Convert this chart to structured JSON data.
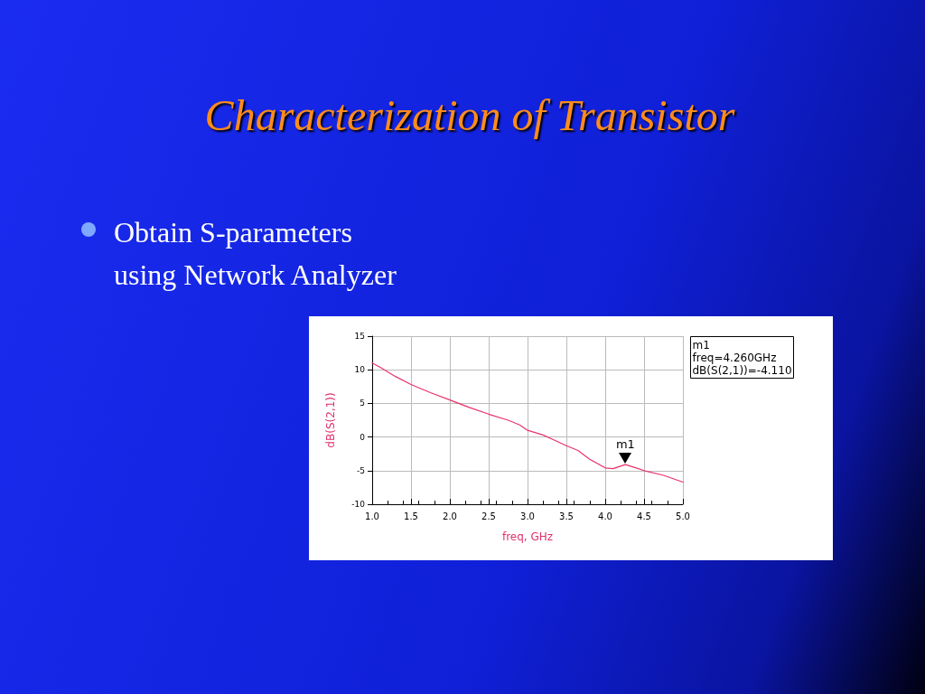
{
  "chart_data": {
    "type": "line",
    "title": "Characterization of Transistor",
    "xlabel": "freq, GHz",
    "ylabel": "dB(S(2,1))",
    "annotations": [
      "Obtain S-parameters using Network Analyzer",
      "m1\nfreq=4.260GHz\ndB(S(2,1))=-4.110",
      {
        "text": "m1",
        "x": 4.26,
        "y": -4.11
      }
    ],
    "series": [
      {
        "color": "#e8336a",
        "x": [
          1.0,
          1.1,
          1.3,
          1.5,
          1.75,
          2.0,
          2.25,
          2.5,
          2.75,
          2.9,
          3.0,
          3.2,
          3.35,
          3.5,
          3.65,
          3.8,
          4.0,
          4.1,
          4.26,
          4.4,
          4.5,
          4.75,
          5.0
        ],
        "values": [
          11.0,
          10.4,
          9.0,
          7.8,
          6.6,
          5.5,
          4.4,
          3.4,
          2.5,
          1.8,
          1.0,
          0.3,
          -0.5,
          -1.3,
          -2.0,
          -3.3,
          -4.6,
          -4.7,
          -4.1,
          -4.6,
          -5.0,
          -5.7,
          -6.7
        ]
      }
    ],
    "xlim": [
      1.0,
      5.0
    ],
    "xticks": [
      {
        "value": 1,
        "label": "1.0"
      },
      {
        "value": 1.5,
        "label": "1.5"
      },
      {
        "value": 2,
        "label": "2.0"
      },
      {
        "value": 2.5,
        "label": "2.5"
      },
      {
        "value": 3,
        "label": "3.0"
      },
      {
        "value": 3.5,
        "label": "3.5"
      },
      {
        "value": 4,
        "label": "4.0"
      },
      {
        "value": 4.5,
        "label": "4.5"
      },
      {
        "value": 5,
        "label": "5.0"
      }
    ],
    "ylim": [
      -10,
      15
    ],
    "yticks": [
      -10,
      -5,
      0,
      5,
      10,
      15
    ],
    "grid": true,
    "marker": "none",
    "line_style": "solid"
  }
}
